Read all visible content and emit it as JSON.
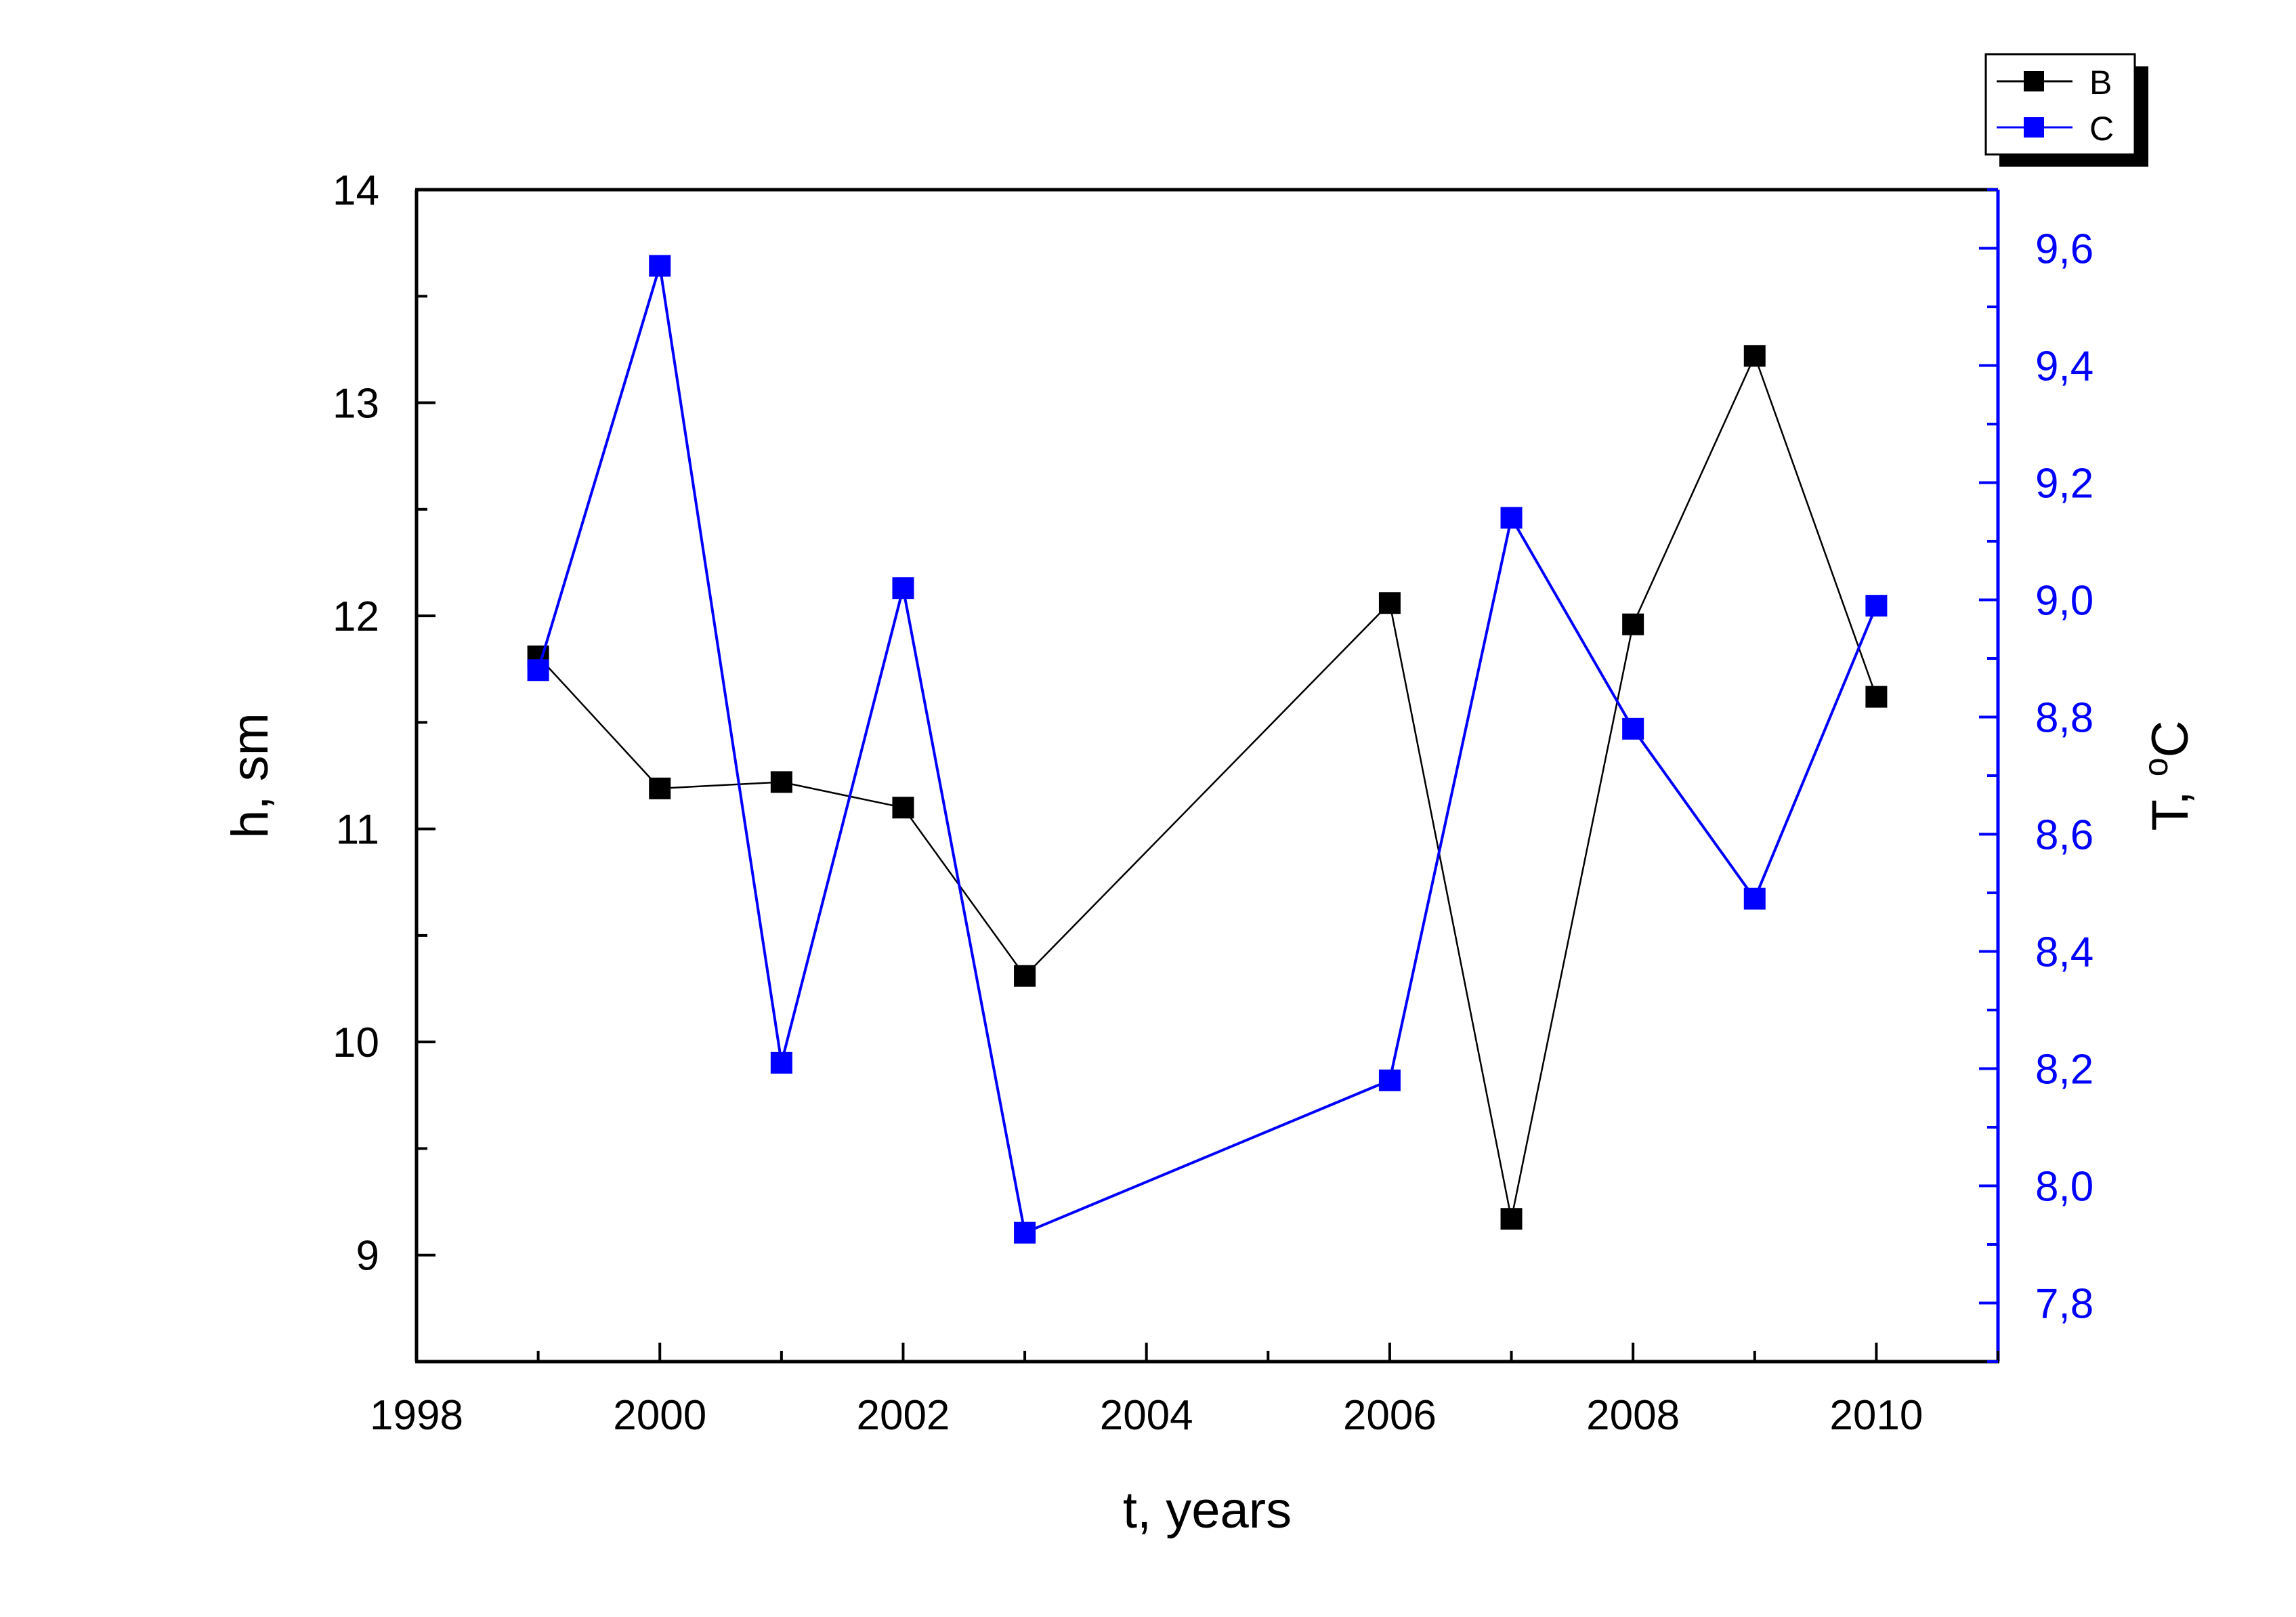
{
  "chart_data": {
    "type": "line",
    "xlabel": "t, years",
    "ylabel": "h, sm",
    "y2label_base": "T, ",
    "y2label_sup": "o",
    "y2label_unit": "C",
    "xlim": [
      1998,
      2011
    ],
    "xticks": [
      1998,
      2000,
      2002,
      2004,
      2006,
      2008,
      2010
    ],
    "ylim": [
      8.5,
      14
    ],
    "yticks": [
      9,
      10,
      11,
      12,
      13,
      14
    ],
    "y2lim": [
      7.7,
      9.7
    ],
    "y2ticks": [
      "7,8",
      "8,0",
      "8,2",
      "8,4",
      "8,6",
      "8,8",
      "9,0",
      "9,2",
      "9,4",
      "9,6"
    ],
    "y2tick_values": [
      7.8,
      8.0,
      8.2,
      8.4,
      8.6,
      8.8,
      9.0,
      9.2,
      9.4,
      9.6
    ],
    "grid": false,
    "legend_position": "top-right, outside plot",
    "series": [
      {
        "name": "B",
        "axis": "left",
        "color": "#000000",
        "marker": "square",
        "x": [
          1999,
          2000,
          2001,
          2002,
          2003,
          2006,
          2007,
          2008,
          2009,
          2010
        ],
        "values": [
          11.81,
          11.19,
          11.22,
          11.1,
          10.31,
          12.06,
          9.17,
          11.96,
          13.22,
          11.62
        ]
      },
      {
        "name": "C",
        "axis": "right",
        "color": "#0000ff",
        "marker": "square",
        "x": [
          1999,
          2000,
          2001,
          2002,
          2003,
          2006,
          2007,
          2008,
          2009,
          2010
        ],
        "values": [
          8.88,
          9.57,
          8.21,
          9.02,
          7.92,
          8.18,
          9.14,
          8.78,
          8.49,
          8.99
        ]
      }
    ]
  }
}
